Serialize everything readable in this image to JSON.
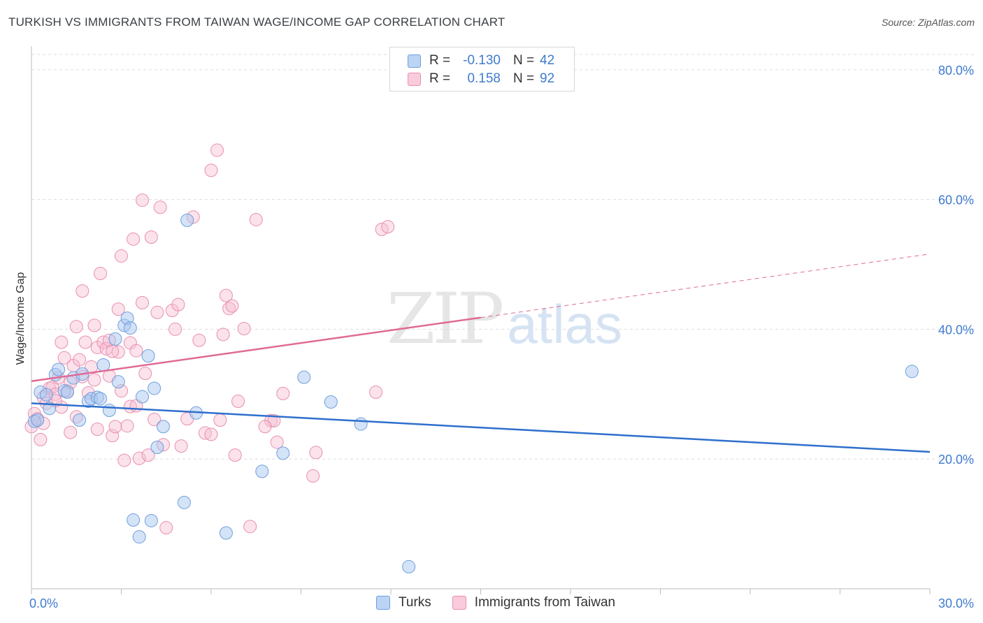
{
  "title": "TURKISH VS IMMIGRANTS FROM TAIWAN WAGE/INCOME GAP CORRELATION CHART",
  "source": "Source: ZipAtlas.com",
  "watermark": {
    "zip": "ZIP",
    "atlas": "atlas"
  },
  "colors": {
    "turks_fill": "#a9c8f0",
    "turks_stroke": "#6f9fdc",
    "turks_line": "#2e6fcc",
    "taiwan_fill": "#f7bfd2",
    "taiwan_stroke": "#e98fb0",
    "taiwan_line": "#e06a95",
    "tick_text": "#3f7bcf",
    "grid": "#dddddd"
  },
  "legend": {
    "rows": [
      {
        "r_label": "R =",
        "r_value": "-0.130",
        "n_label": "N =",
        "n_value": "42"
      },
      {
        "r_label": "R =",
        "r_value": "0.158",
        "n_label": "N =",
        "n_value": "92"
      }
    ]
  },
  "bottom_legend": {
    "turks": "Turks",
    "taiwan": "Immigrants from Taiwan"
  },
  "chart_data": {
    "type": "scatter",
    "title": "TURKISH VS IMMIGRANTS FROM TAIWAN WAGE/INCOME GAP CORRELATION CHART",
    "xlabel": "",
    "ylabel": "Wage/Income Gap",
    "xlim": [
      0,
      30
    ],
    "ylim": [
      0,
      83
    ],
    "x_tick_labels": [
      "0.0%",
      "30.0%"
    ],
    "y_ticks": [
      20,
      40,
      60,
      80
    ],
    "y_tick_labels": [
      "20.0%",
      "40.0%",
      "60.0%",
      "80.0%"
    ],
    "grid": true,
    "legend_position": "top-center",
    "series": [
      {
        "name": "Turks",
        "r": -0.13,
        "n": 42,
        "trend": {
          "x": [
            0,
            30
          ],
          "y": [
            28.6,
            21.1
          ]
        },
        "points": [
          [
            0.1,
            25.8
          ],
          [
            0.2,
            26.0
          ],
          [
            0.3,
            30.3
          ],
          [
            0.5,
            29.9
          ],
          [
            0.6,
            27.8
          ],
          [
            0.8,
            33.0
          ],
          [
            0.9,
            33.8
          ],
          [
            1.1,
            30.5
          ],
          [
            1.2,
            30.3
          ],
          [
            1.4,
            32.5
          ],
          [
            1.6,
            26.0
          ],
          [
            1.7,
            33.1
          ],
          [
            1.9,
            28.9
          ],
          [
            2.0,
            29.3
          ],
          [
            2.2,
            29.5
          ],
          [
            2.3,
            29.3
          ],
          [
            2.4,
            34.5
          ],
          [
            2.6,
            27.5
          ],
          [
            2.8,
            38.5
          ],
          [
            2.9,
            31.9
          ],
          [
            3.1,
            40.6
          ],
          [
            3.2,
            41.7
          ],
          [
            3.3,
            40.2
          ],
          [
            3.4,
            10.6
          ],
          [
            3.6,
            8.0
          ],
          [
            3.7,
            29.6
          ],
          [
            3.9,
            35.9
          ],
          [
            4.0,
            10.5
          ],
          [
            4.1,
            30.9
          ],
          [
            4.2,
            21.8
          ],
          [
            4.4,
            25.0
          ],
          [
            5.1,
            13.3
          ],
          [
            5.2,
            56.8
          ],
          [
            5.5,
            27.1
          ],
          [
            6.5,
            8.6
          ],
          [
            7.7,
            18.1
          ],
          [
            8.4,
            20.9
          ],
          [
            9.1,
            32.6
          ],
          [
            10.0,
            28.8
          ],
          [
            11.0,
            25.4
          ],
          [
            12.6,
            3.4
          ],
          [
            29.4,
            33.5
          ]
        ]
      },
      {
        "name": "Immigrants from Taiwan",
        "r": 0.158,
        "n": 92,
        "trend": {
          "x": [
            0,
            15
          ],
          "y": [
            32.0,
            41.8
          ]
        },
        "trend_dashed": {
          "x": [
            15,
            30
          ],
          "y": [
            41.8,
            51.6
          ]
        },
        "points": [
          [
            0.0,
            25.0
          ],
          [
            0.1,
            27.0
          ],
          [
            0.2,
            26.2
          ],
          [
            0.3,
            23.0
          ],
          [
            0.4,
            29.5
          ],
          [
            0.5,
            28.6
          ],
          [
            0.6,
            30.9
          ],
          [
            0.7,
            31.1
          ],
          [
            0.8,
            30.0
          ],
          [
            0.9,
            32.5
          ],
          [
            1.0,
            28.0
          ],
          [
            1.0,
            38.0
          ],
          [
            1.1,
            35.6
          ],
          [
            1.2,
            30.5
          ],
          [
            1.3,
            24.1
          ],
          [
            1.4,
            34.4
          ],
          [
            1.5,
            40.4
          ],
          [
            1.6,
            35.3
          ],
          [
            1.7,
            45.9
          ],
          [
            1.7,
            32.7
          ],
          [
            1.8,
            38.0
          ],
          [
            1.9,
            30.2
          ],
          [
            2.0,
            34.2
          ],
          [
            2.1,
            32.2
          ],
          [
            2.1,
            40.6
          ],
          [
            2.2,
            37.2
          ],
          [
            2.3,
            48.6
          ],
          [
            2.4,
            38.0
          ],
          [
            2.5,
            37.0
          ],
          [
            2.6,
            32.8
          ],
          [
            2.6,
            38.3
          ],
          [
            2.7,
            23.6
          ],
          [
            2.8,
            25.0
          ],
          [
            2.9,
            36.5
          ],
          [
            2.9,
            43.1
          ],
          [
            3.0,
            51.3
          ],
          [
            3.1,
            19.8
          ],
          [
            3.2,
            25.1
          ],
          [
            3.3,
            28.1
          ],
          [
            3.3,
            37.9
          ],
          [
            3.4,
            53.9
          ],
          [
            3.5,
            36.7
          ],
          [
            3.6,
            20.1
          ],
          [
            3.7,
            44.1
          ],
          [
            3.7,
            59.9
          ],
          [
            3.8,
            33.2
          ],
          [
            3.9,
            20.6
          ],
          [
            4.0,
            54.2
          ],
          [
            4.1,
            26.1
          ],
          [
            4.2,
            42.6
          ],
          [
            4.3,
            58.8
          ],
          [
            4.4,
            22.2
          ],
          [
            4.5,
            9.4
          ],
          [
            4.7,
            42.9
          ],
          [
            4.9,
            43.8
          ],
          [
            5.2,
            26.2
          ],
          [
            5.4,
            57.3
          ],
          [
            5.6,
            38.3
          ],
          [
            5.8,
            24.0
          ],
          [
            6.0,
            64.5
          ],
          [
            6.2,
            67.6
          ],
          [
            6.3,
            26.0
          ],
          [
            6.4,
            39.2
          ],
          [
            6.5,
            45.2
          ],
          [
            6.6,
            43.2
          ],
          [
            6.7,
            43.6
          ],
          [
            6.8,
            20.6
          ],
          [
            6.9,
            28.9
          ],
          [
            7.1,
            40.1
          ],
          [
            7.3,
            9.6
          ],
          [
            7.5,
            56.9
          ],
          [
            8.0,
            25.9
          ],
          [
            8.1,
            25.9
          ],
          [
            8.2,
            22.6
          ],
          [
            8.4,
            30.1
          ],
          [
            9.4,
            17.4
          ],
          [
            9.5,
            21.0
          ],
          [
            11.7,
            55.4
          ],
          [
            11.9,
            55.8
          ],
          [
            11.5,
            30.3
          ],
          [
            3.5,
            28.2
          ],
          [
            5.0,
            22.0
          ],
          [
            2.2,
            24.6
          ],
          [
            1.5,
            26.5
          ],
          [
            0.8,
            29.0
          ],
          [
            6.0,
            23.8
          ],
          [
            4.8,
            40.0
          ],
          [
            3.0,
            30.5
          ],
          [
            1.3,
            31.8
          ],
          [
            2.7,
            36.6
          ],
          [
            0.4,
            25.5
          ],
          [
            7.8,
            25.0
          ]
        ]
      }
    ]
  }
}
